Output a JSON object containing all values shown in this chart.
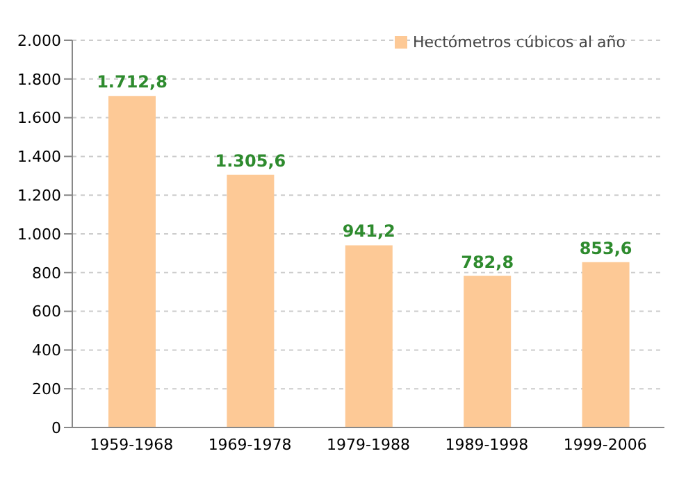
{
  "chart_data": {
    "type": "bar",
    "categories": [
      "1959-1968",
      "1969-1978",
      "1979-1988",
      "1989-1998",
      "1999-2006"
    ],
    "series": [
      {
        "name": "Hectómetros cúbicos al año",
        "color": "#fdc996",
        "values": [
          1712.8,
          1305.6,
          941.2,
          782.8,
          853.6
        ],
        "value_labels": [
          "1.712,8",
          "1.305,6",
          "941,2",
          "782,8",
          "853,6"
        ]
      }
    ],
    "ylim": [
      0,
      2000
    ],
    "yticks": [
      0,
      {
        "value": 200,
        "label": "200"
      },
      {
        "value": 400,
        "label": "400"
      },
      {
        "value": 600,
        "label": "600"
      },
      {
        "value": 800,
        "label": "800"
      },
      {
        "value": 1000,
        "label": "1.000"
      },
      {
        "value": 1200,
        "label": "1.200"
      },
      {
        "value": 1400,
        "label": "1.400"
      },
      {
        "value": 1600,
        "label": "1.600"
      },
      {
        "value": 1800,
        "label": "1.800"
      },
      {
        "value": 2000,
        "label": "2.000"
      }
    ],
    "grid": "y",
    "legend": "top right"
  }
}
